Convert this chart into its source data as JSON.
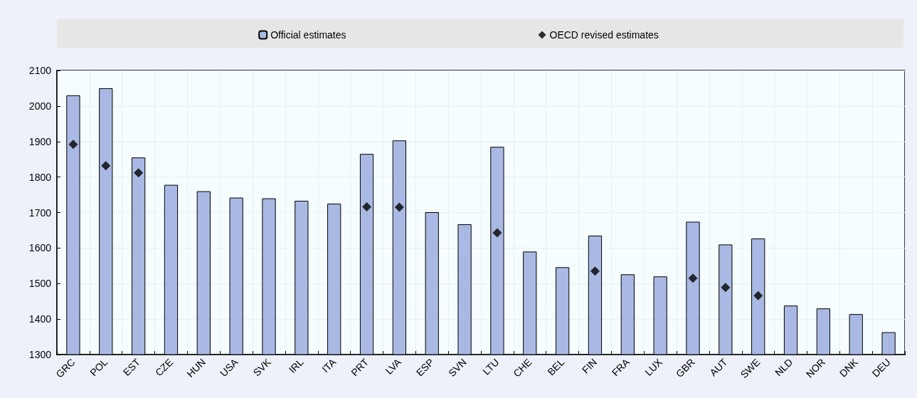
{
  "chart_data": {
    "type": "bar",
    "categories": [
      "GRC",
      "POL",
      "EST",
      "CZE",
      "HUN",
      "USA",
      "SVK",
      "IRL",
      "ITA",
      "PRT",
      "LVA",
      "ESP",
      "SVN",
      "LTU",
      "CHE",
      "BEL",
      "FIN",
      "FRA",
      "LUX",
      "GBR",
      "AUT",
      "SWE",
      "NLD",
      "NOR",
      "DNK",
      "DEU"
    ],
    "series": [
      {
        "name": "Official estimates",
        "color": "#a9b9e3",
        "values": [
          2030,
          2050,
          1855,
          1778,
          1760,
          1742,
          1740,
          1733,
          1725,
          1865,
          1903,
          1701,
          1667,
          1885,
          1590,
          1546,
          1635,
          1526,
          1520,
          1674,
          1610,
          1627,
          1438,
          1430,
          1414,
          1363
        ]
      },
      {
        "name": "OECD revised estimates",
        "type": "scatter",
        "color": "#000000",
        "marker": "diamond",
        "values": [
          1892,
          1832,
          1812,
          null,
          null,
          null,
          null,
          null,
          null,
          1716,
          1715,
          null,
          null,
          1643,
          null,
          null,
          1535,
          null,
          null,
          1515,
          1489,
          1466,
          null,
          null,
          null,
          null
        ]
      }
    ],
    "ylim": [
      1300,
      2100
    ],
    "yticks": [
      1300,
      1400,
      1500,
      1600,
      1700,
      1800,
      1900,
      2000,
      2100
    ],
    "grid": true,
    "legend": "top"
  }
}
